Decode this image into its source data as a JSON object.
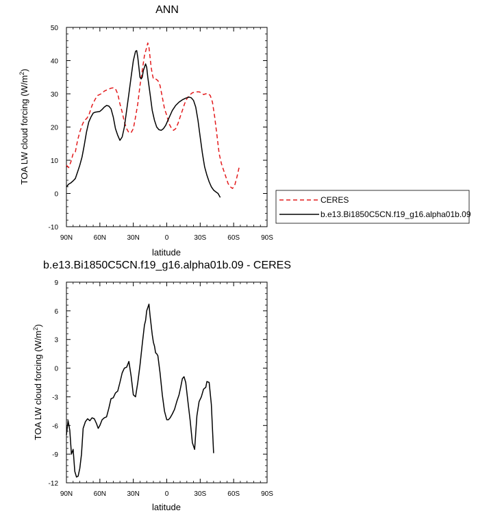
{
  "chart_data": [
    {
      "type": "line",
      "title": "ANN",
      "xlabel": "latitude",
      "ylabel_main": "TOA LW cloud forcing (W/m",
      "ylabel_sup": "2",
      "ylabel_close": ")",
      "xlim": [
        90,
        -90
      ],
      "ylim": [
        -10,
        50
      ],
      "xticks": [
        {
          "value": 90,
          "label": "90N"
        },
        {
          "value": 60,
          "label": "60N"
        },
        {
          "value": 30,
          "label": "30N"
        },
        {
          "value": 0,
          "label": "0"
        },
        {
          "value": -30,
          "label": "30S"
        },
        {
          "value": -60,
          "label": "60S"
        },
        {
          "value": -90,
          "label": "90S"
        }
      ],
      "yticks": [
        {
          "value": -10,
          "label": "-10"
        },
        {
          "value": 0,
          "label": "0"
        },
        {
          "value": 10,
          "label": "10"
        },
        {
          "value": 20,
          "label": "20"
        },
        {
          "value": 30,
          "label": "30"
        },
        {
          "value": 40,
          "label": "40"
        },
        {
          "value": 50,
          "label": "50"
        }
      ],
      "legend_position": "right",
      "series": [
        {
          "name": "CERES",
          "color": "#e31a1c",
          "dash": "dashed",
          "points": [
            [
              90,
              8.5
            ],
            [
              88,
              7.8
            ],
            [
              86,
              9.5
            ],
            [
              84,
              12
            ],
            [
              82,
              12.5
            ],
            [
              80,
              16
            ],
            [
              78,
              18.5
            ],
            [
              76,
              20.5
            ],
            [
              74,
              22
            ],
            [
              72,
              22.5
            ],
            [
              70,
              23.5
            ],
            [
              67,
              26.5
            ],
            [
              64,
              28.5
            ],
            [
              62,
              29.5
            ],
            [
              59,
              30
            ],
            [
              56,
              30.8
            ],
            [
              53,
              31.3
            ],
            [
              50,
              31.7
            ],
            [
              48,
              31.8
            ],
            [
              46,
              31.5
            ],
            [
              44,
              30
            ],
            [
              42,
              27
            ],
            [
              40,
              24.5
            ],
            [
              38,
              21.5
            ],
            [
              36,
              19.5
            ],
            [
              34,
              18.3
            ],
            [
              32,
              18.3
            ],
            [
              30,
              19.5
            ],
            [
              28,
              23
            ],
            [
              26,
              27
            ],
            [
              24,
              32.5
            ],
            [
              22,
              37
            ],
            [
              20,
              41.5
            ],
            [
              18,
              44
            ],
            [
              17,
              45.3
            ],
            [
              16,
              44
            ],
            [
              14,
              38
            ],
            [
              13,
              36
            ],
            [
              12,
              34.5
            ],
            [
              10,
              34.5
            ],
            [
              8,
              34
            ],
            [
              6,
              32.5
            ],
            [
              4,
              29
            ],
            [
              2,
              25.5
            ],
            [
              0,
              23.5
            ],
            [
              -2,
              21
            ],
            [
              -4,
              19.8
            ],
            [
              -6,
              19
            ],
            [
              -8,
              19.5
            ],
            [
              -10,
              21
            ],
            [
              -12,
              23
            ],
            [
              -14,
              25
            ],
            [
              -16,
              27
            ],
            [
              -18,
              28.5
            ],
            [
              -20,
              29.5
            ],
            [
              -23,
              30.3
            ],
            [
              -26,
              30.6
            ],
            [
              -29,
              30.6
            ],
            [
              -31,
              30.3
            ],
            [
              -33,
              29.8
            ],
            [
              -35,
              30
            ],
            [
              -37,
              30.1
            ],
            [
              -39,
              29.5
            ],
            [
              -41,
              27.5
            ],
            [
              -43,
              23
            ],
            [
              -45,
              17.5
            ],
            [
              -47,
              12
            ],
            [
              -49,
              9
            ],
            [
              -51,
              7
            ],
            [
              -53,
              5
            ],
            [
              -55,
              3
            ],
            [
              -57,
              2
            ],
            [
              -59,
              1.5
            ],
            [
              -61,
              2.5
            ],
            [
              -63,
              5
            ],
            [
              -65,
              8
            ]
          ]
        },
        {
          "name": "b.e13.Bi1850C5CN.f19_g16.alpha01b.09",
          "color": "#000000",
          "dash": "solid",
          "points": [
            [
              90,
              2
            ],
            [
              88,
              2.8
            ],
            [
              86,
              3.2
            ],
            [
              84,
              3.8
            ],
            [
              82,
              4.5
            ],
            [
              80,
              6.5
            ],
            [
              78,
              8.5
            ],
            [
              76,
              11
            ],
            [
              74,
              14.5
            ],
            [
              72,
              18.5
            ],
            [
              70,
              21.5
            ],
            [
              68,
              23
            ],
            [
              66,
              24.2
            ],
            [
              64,
              24.5
            ],
            [
              62,
              24.6
            ],
            [
              60,
              24.7
            ],
            [
              58,
              25.3
            ],
            [
              56,
              26
            ],
            [
              54,
              26.5
            ],
            [
              52,
              26.3
            ],
            [
              50,
              25.5
            ],
            [
              48,
              23
            ],
            [
              46,
              19.5
            ],
            [
              44,
              17.5
            ],
            [
              42,
              16
            ],
            [
              40,
              17
            ],
            [
              38,
              20
            ],
            [
              36,
              25
            ],
            [
              34,
              30
            ],
            [
              32,
              35
            ],
            [
              30,
              40
            ],
            [
              28,
              42.8
            ],
            [
              27,
              43
            ],
            [
              26,
              41
            ],
            [
              25,
              38
            ],
            [
              24,
              35
            ],
            [
              23,
              34.5
            ],
            [
              22,
              35
            ],
            [
              21,
              37
            ],
            [
              19,
              39
            ],
            [
              18,
              38
            ],
            [
              17,
              35
            ],
            [
              15,
              30
            ],
            [
              13,
              25
            ],
            [
              11,
              22
            ],
            [
              9,
              20
            ],
            [
              7,
              19.2
            ],
            [
              5,
              19
            ],
            [
              3,
              19.5
            ],
            [
              1,
              20.5
            ],
            [
              -1,
              22
            ],
            [
              -3,
              23.5
            ],
            [
              -5,
              25
            ],
            [
              -8,
              26.5
            ],
            [
              -11,
              27.5
            ],
            [
              -14,
              28.2
            ],
            [
              -17,
              28.7
            ],
            [
              -20,
              29
            ],
            [
              -22,
              28.8
            ],
            [
              -24,
              28
            ],
            [
              -26,
              26
            ],
            [
              -28,
              22
            ],
            [
              -30,
              17
            ],
            [
              -32,
              12
            ],
            [
              -34,
              8
            ],
            [
              -36,
              5.5
            ],
            [
              -38,
              3.5
            ],
            [
              -40,
              2
            ],
            [
              -42,
              1
            ],
            [
              -44,
              0.5
            ],
            [
              -46,
              0
            ],
            [
              -48,
              -1.2
            ]
          ]
        }
      ]
    },
    {
      "type": "line",
      "title": "b.e13.Bi1850C5CN.f19_g16.alpha01b.09 - CERES",
      "xlabel": "latitude",
      "ylabel_main": "TOA LW cloud forcing (W/m",
      "ylabel_sup": "2",
      "ylabel_close": ")",
      "xlim": [
        90,
        -90
      ],
      "ylim": [
        -12,
        9
      ],
      "xticks": [
        {
          "value": 90,
          "label": "90N"
        },
        {
          "value": 60,
          "label": "60N"
        },
        {
          "value": 30,
          "label": "30N"
        },
        {
          "value": 0,
          "label": "0"
        },
        {
          "value": -30,
          "label": "30S"
        },
        {
          "value": -60,
          "label": "60S"
        },
        {
          "value": -90,
          "label": "90S"
        }
      ],
      "yticks": [
        {
          "value": -12,
          "label": "-12"
        },
        {
          "value": -9,
          "label": "-9"
        },
        {
          "value": -6,
          "label": "-6"
        },
        {
          "value": -3,
          "label": "-3"
        },
        {
          "value": 0,
          "label": "0"
        },
        {
          "value": 3,
          "label": "3"
        },
        {
          "value": 6,
          "label": "6"
        },
        {
          "value": 9,
          "label": "9"
        }
      ],
      "series": [
        {
          "color": "#000000",
          "dash": "solid",
          "points": [
            [
              90,
              -7
            ],
            [
              88.5,
              -5.5
            ],
            [
              87,
              -6.5
            ],
            [
              85.5,
              -9
            ],
            [
              84,
              -8.5
            ],
            [
              82.5,
              -10.8
            ],
            [
              81,
              -11.4
            ],
            [
              79.5,
              -11.3
            ],
            [
              78,
              -10.5
            ],
            [
              76.5,
              -9
            ],
            [
              75,
              -6.3
            ],
            [
              73,
              -5.6
            ],
            [
              71,
              -5.3
            ],
            [
              69,
              -5.5
            ],
            [
              67,
              -5.2
            ],
            [
              65,
              -5.3
            ],
            [
              63,
              -5.8
            ],
            [
              61.5,
              -6.3
            ],
            [
              60,
              -6
            ],
            [
              58,
              -5.4
            ],
            [
              56,
              -5.2
            ],
            [
              54,
              -5.1
            ],
            [
              52,
              -4.2
            ],
            [
              50,
              -3.2
            ],
            [
              48,
              -3.1
            ],
            [
              46,
              -2.6
            ],
            [
              44,
              -2.4
            ],
            [
              42,
              -1.5
            ],
            [
              40,
              -0.5
            ],
            [
              38,
              0
            ],
            [
              36,
              0.1
            ],
            [
              34,
              0.7
            ],
            [
              32,
              -0.8
            ],
            [
              30,
              -2.8
            ],
            [
              28,
              -3
            ],
            [
              26,
              -1.5
            ],
            [
              24,
              0.3
            ],
            [
              22,
              2.5
            ],
            [
              20,
              4.5
            ],
            [
              19,
              5
            ],
            [
              18,
              6
            ],
            [
              16,
              6.7
            ],
            [
              15,
              5.5
            ],
            [
              13,
              3.5
            ],
            [
              12,
              2.7
            ],
            [
              11,
              2.3
            ],
            [
              10,
              1.6
            ],
            [
              9,
              1.5
            ],
            [
              8,
              1.3
            ],
            [
              6,
              -0.5
            ],
            [
              4,
              -2.8
            ],
            [
              2,
              -4.5
            ],
            [
              0,
              -5.4
            ],
            [
              -1.5,
              -5.4
            ],
            [
              -3,
              -5.2
            ],
            [
              -5,
              -4.8
            ],
            [
              -7,
              -4.3
            ],
            [
              -9,
              -3.5
            ],
            [
              -11,
              -2.8
            ],
            [
              -12.5,
              -2
            ],
            [
              -14,
              -1.1
            ],
            [
              -15.5,
              -0.9
            ],
            [
              -17,
              -1.5
            ],
            [
              -19,
              -3.5
            ],
            [
              -21,
              -5.5
            ],
            [
              -23,
              -7.8
            ],
            [
              -25,
              -8.5
            ],
            [
              -27,
              -5
            ],
            [
              -29,
              -3.5
            ],
            [
              -31,
              -3
            ],
            [
              -33,
              -2.2
            ],
            [
              -35,
              -2
            ],
            [
              -36,
              -1.4
            ],
            [
              -38,
              -1.5
            ],
            [
              -40,
              -3.8
            ],
            [
              -42,
              -8.9
            ]
          ]
        }
      ]
    }
  ]
}
